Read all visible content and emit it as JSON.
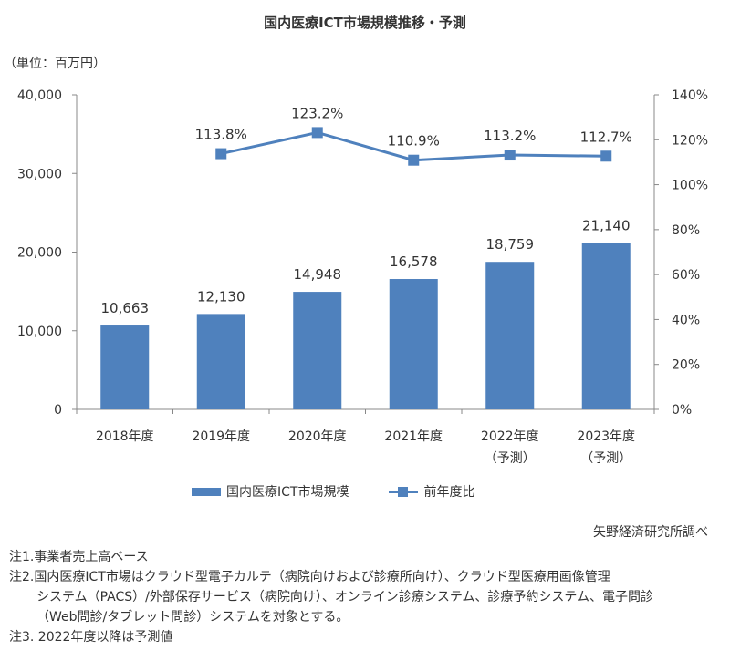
{
  "header": {
    "title": "国内医療ICT市場規模推移・予測",
    "unit": "（単位：百万円）"
  },
  "chart_data": {
    "type": "bar",
    "categories": [
      [
        "2018年度"
      ],
      [
        "2019年度"
      ],
      [
        "2020年度"
      ],
      [
        "2021年度"
      ],
      [
        "2022年度",
        "（予測）"
      ],
      [
        "2023年度",
        "（予測）"
      ]
    ],
    "series": [
      {
        "name": "国内医療ICT市場規模",
        "type": "bar",
        "axis": "left",
        "values": [
          10663,
          12130,
          14948,
          16578,
          18759,
          21140
        ],
        "labels": [
          "10,663",
          "12,130",
          "14,948",
          "16,578",
          "18,759",
          "21,140"
        ],
        "color": "#4f81bd"
      },
      {
        "name": "前年度比",
        "type": "line",
        "axis": "right",
        "values": [
          null,
          113.8,
          123.2,
          110.9,
          113.2,
          112.7
        ],
        "labels": [
          null,
          "113.8%",
          "123.2%",
          "110.9%",
          "113.2%",
          "112.7%"
        ],
        "color": "#4f81bd"
      }
    ],
    "y_left": {
      "range": [
        0,
        40000
      ],
      "ticks": [
        0,
        10000,
        20000,
        30000,
        40000
      ],
      "tick_labels": [
        "0",
        "10,000",
        "20,000",
        "30,000",
        "40,000"
      ]
    },
    "y_right": {
      "range": [
        0,
        140
      ],
      "ticks": [
        0,
        20,
        40,
        60,
        80,
        100,
        120,
        140
      ],
      "tick_labels": [
        "0%",
        "20%",
        "40%",
        "60%",
        "80%",
        "100%",
        "120%",
        "140%"
      ]
    },
    "grid": false,
    "legend": "bottom"
  },
  "legend": {
    "bar_label": "国内医療ICT市場規模",
    "line_label": "前年度比"
  },
  "source": "矢野経済研究所調べ",
  "notes": {
    "n1": "注1.事業者売上高ベース",
    "n2a": "注2.国内医療ICT市場はクラウド型電子カルテ（病院向けおよび診療所向け）、クラウド型医療用画像管理",
    "n2b": "システム（PACS）/外部保存サービス（病院向け）、オンライン診療システム、診療予約システム、電子問診",
    "n2c": "（Web問診/タブレット問診）システムを対象とする。",
    "n3": "注3. 2022年度以降は予測値"
  }
}
